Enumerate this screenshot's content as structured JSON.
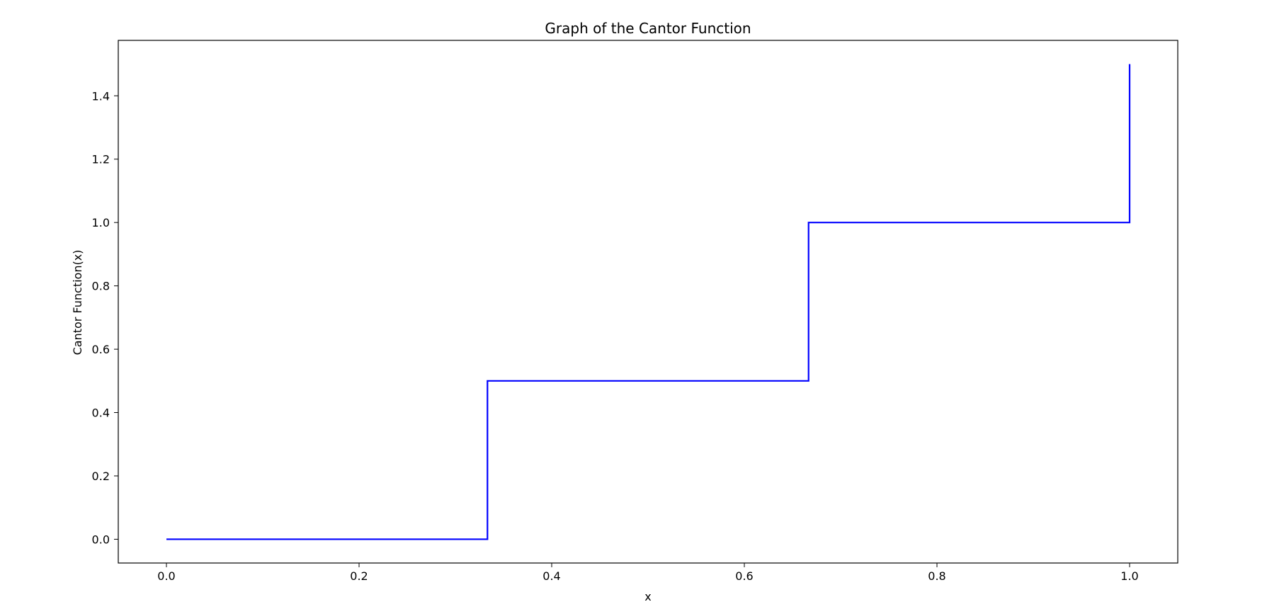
{
  "chart_data": {
    "type": "line",
    "title": "Graph of the Cantor Function",
    "xlabel": "x",
    "ylabel": "Cantor Function(x)",
    "xlim": [
      -0.05,
      1.05
    ],
    "ylim": [
      -0.075,
      1.575
    ],
    "x_ticks": [
      0.0,
      0.2,
      0.4,
      0.6,
      0.8,
      1.0
    ],
    "y_ticks": [
      0.0,
      0.2,
      0.4,
      0.6,
      0.8,
      1.0,
      1.2,
      1.4
    ],
    "x_tick_labels": [
      "0.0",
      "0.2",
      "0.4",
      "0.6",
      "0.8",
      "1.0"
    ],
    "y_tick_labels": [
      "0.0",
      "0.2",
      "0.4",
      "0.6",
      "0.8",
      "1.0",
      "1.2",
      "1.4"
    ],
    "grid": false,
    "series": [
      {
        "color": "#0000ff",
        "x": [
          0.0,
          0.3333,
          0.3333,
          0.6667,
          0.6667,
          1.0,
          1.0
        ],
        "y": [
          0.0,
          0.0,
          0.5,
          0.5,
          1.0,
          1.0,
          1.5
        ]
      }
    ]
  }
}
